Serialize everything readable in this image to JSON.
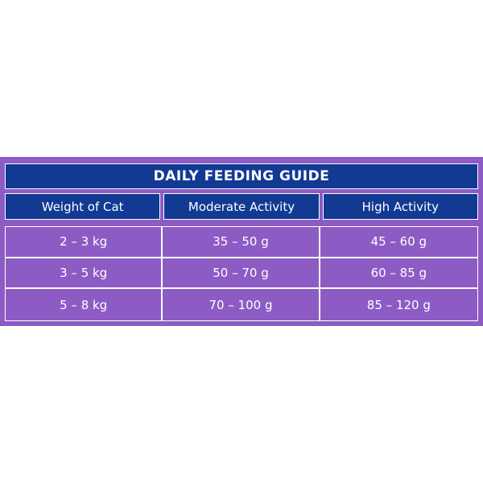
{
  "title": "DAILY FEEDING GUIDE",
  "columns": [
    "Weight of Cat",
    "Moderate Activity",
    "High Activity"
  ],
  "rows": [
    [
      "2 – 3 kg",
      "35 – 50 g",
      "45 – 60 g"
    ],
    [
      "3 – 5 kg",
      "50 – 70 g",
      "60 – 85 g"
    ],
    [
      "5 – 8 kg",
      "70 – 100 g",
      "85 – 120 g"
    ]
  ],
  "colors": {
    "background_purple": "#8d5bc4",
    "header_navy": "#123a93",
    "text": "#ffffff"
  }
}
